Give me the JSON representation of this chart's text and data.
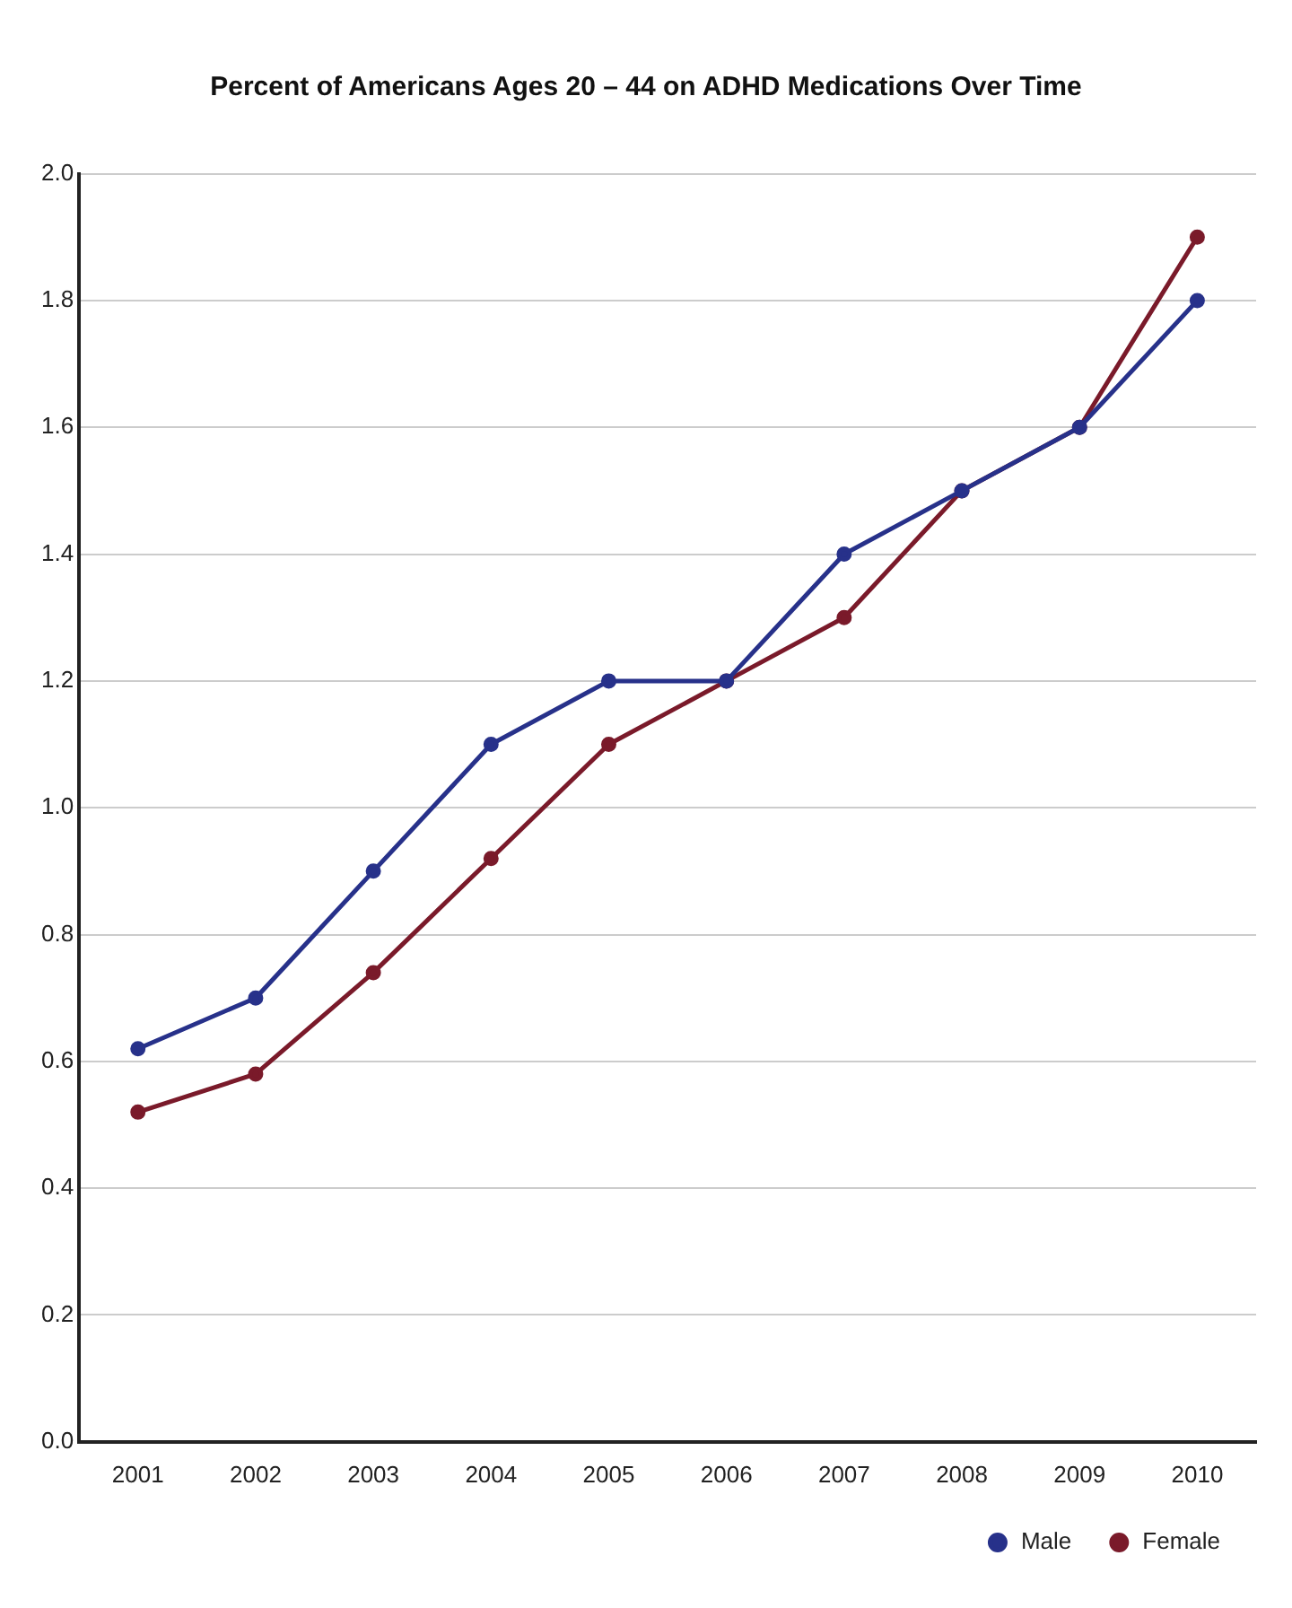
{
  "chart_data": {
    "type": "line",
    "title": "Percent of Americans Ages 20 – 44 on ADHD Medications Over Time",
    "categories": [
      "2001",
      "2002",
      "2003",
      "2004",
      "2005",
      "2006",
      "2007",
      "2008",
      "2009",
      "2010"
    ],
    "series": [
      {
        "name": "Male",
        "color": "#27318a",
        "values": [
          0.62,
          0.7,
          0.9,
          1.1,
          1.2,
          1.2,
          1.4,
          1.5,
          1.6,
          1.8
        ]
      },
      {
        "name": "Female",
        "color": "#7a1a2a",
        "values": [
          0.52,
          0.58,
          0.74,
          0.92,
          1.1,
          1.2,
          1.3,
          1.5,
          1.6,
          1.9
        ]
      }
    ],
    "ylim": [
      0,
      2
    ],
    "yticks": [
      {
        "value": 0,
        "label": "0.0"
      },
      0.2,
      0.4,
      0.6,
      0.8,
      {
        "value": 1,
        "label": "1.0"
      },
      1.2,
      1.4,
      1.6,
      1.8,
      {
        "value": 2,
        "label": "2.0"
      }
    ],
    "grid": "y",
    "legend": "bottom right",
    "marker": "circle",
    "line_style": "solid"
  }
}
